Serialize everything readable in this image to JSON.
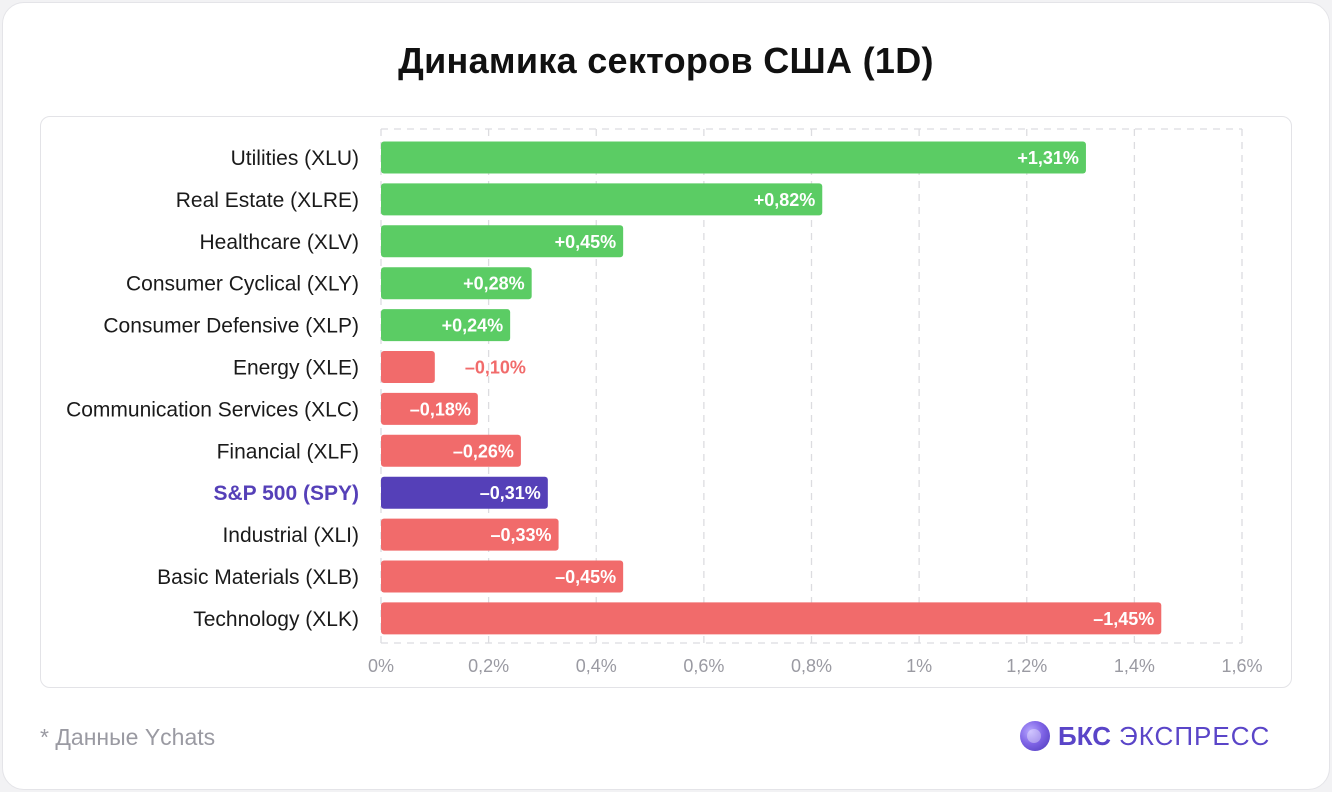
{
  "page": {
    "title": "Динамика секторов США (1D)",
    "footnote": "* Данные Ychats",
    "brand": {
      "bold": "БКС",
      "light": "ЭКСПРЕСС",
      "icon": "bks-logo-icon"
    }
  },
  "colors": {
    "positive": "#5bcc64",
    "negative": "#f16b6b",
    "highlight": "#5540b8",
    "grid": "#dcdce0",
    "axis_text": "#9a9aa2",
    "label_text": "#1a1a1a"
  },
  "chart_data": {
    "type": "bar",
    "orientation": "horizontal",
    "value_axis": "absolute change (%)",
    "grid": true,
    "xlim": [
      0,
      1.6
    ],
    "ticks": [
      0,
      0.2,
      0.4,
      0.6,
      0.8,
      1.0,
      1.2,
      1.4,
      1.6
    ],
    "tick_labels": [
      "0%",
      "0,2%",
      "0,4%",
      "0,6%",
      "0,8%",
      "1%",
      "1,2%",
      "1,4%",
      "1,6%"
    ],
    "categories": [
      "Utilities (XLU)",
      "Real Estate (XLRE)",
      "Healthcare (XLV)",
      "Consumer Cyclical (XLY)",
      "Consumer Defensive (XLP)",
      "Energy (XLE)",
      "Communication Services (XLC)",
      "Financial (XLF)",
      "S&P 500 (SPY)",
      "Industrial (XLI)",
      "Basic Materials (XLB)",
      "Technology (XLK)"
    ],
    "values": [
      1.31,
      0.82,
      0.45,
      0.28,
      0.24,
      -0.1,
      -0.18,
      -0.26,
      -0.31,
      -0.33,
      -0.45,
      -1.45
    ],
    "value_labels": [
      "+1,31%",
      "+0,82%",
      "+0,45%",
      "+0,28%",
      "+0,24%",
      "–0,10%",
      "–0,18%",
      "–0,26%",
      "–0,31%",
      "–0,33%",
      "–0,45%",
      "–1,45%"
    ],
    "highlight_category": "S&P 500 (SPY)"
  }
}
